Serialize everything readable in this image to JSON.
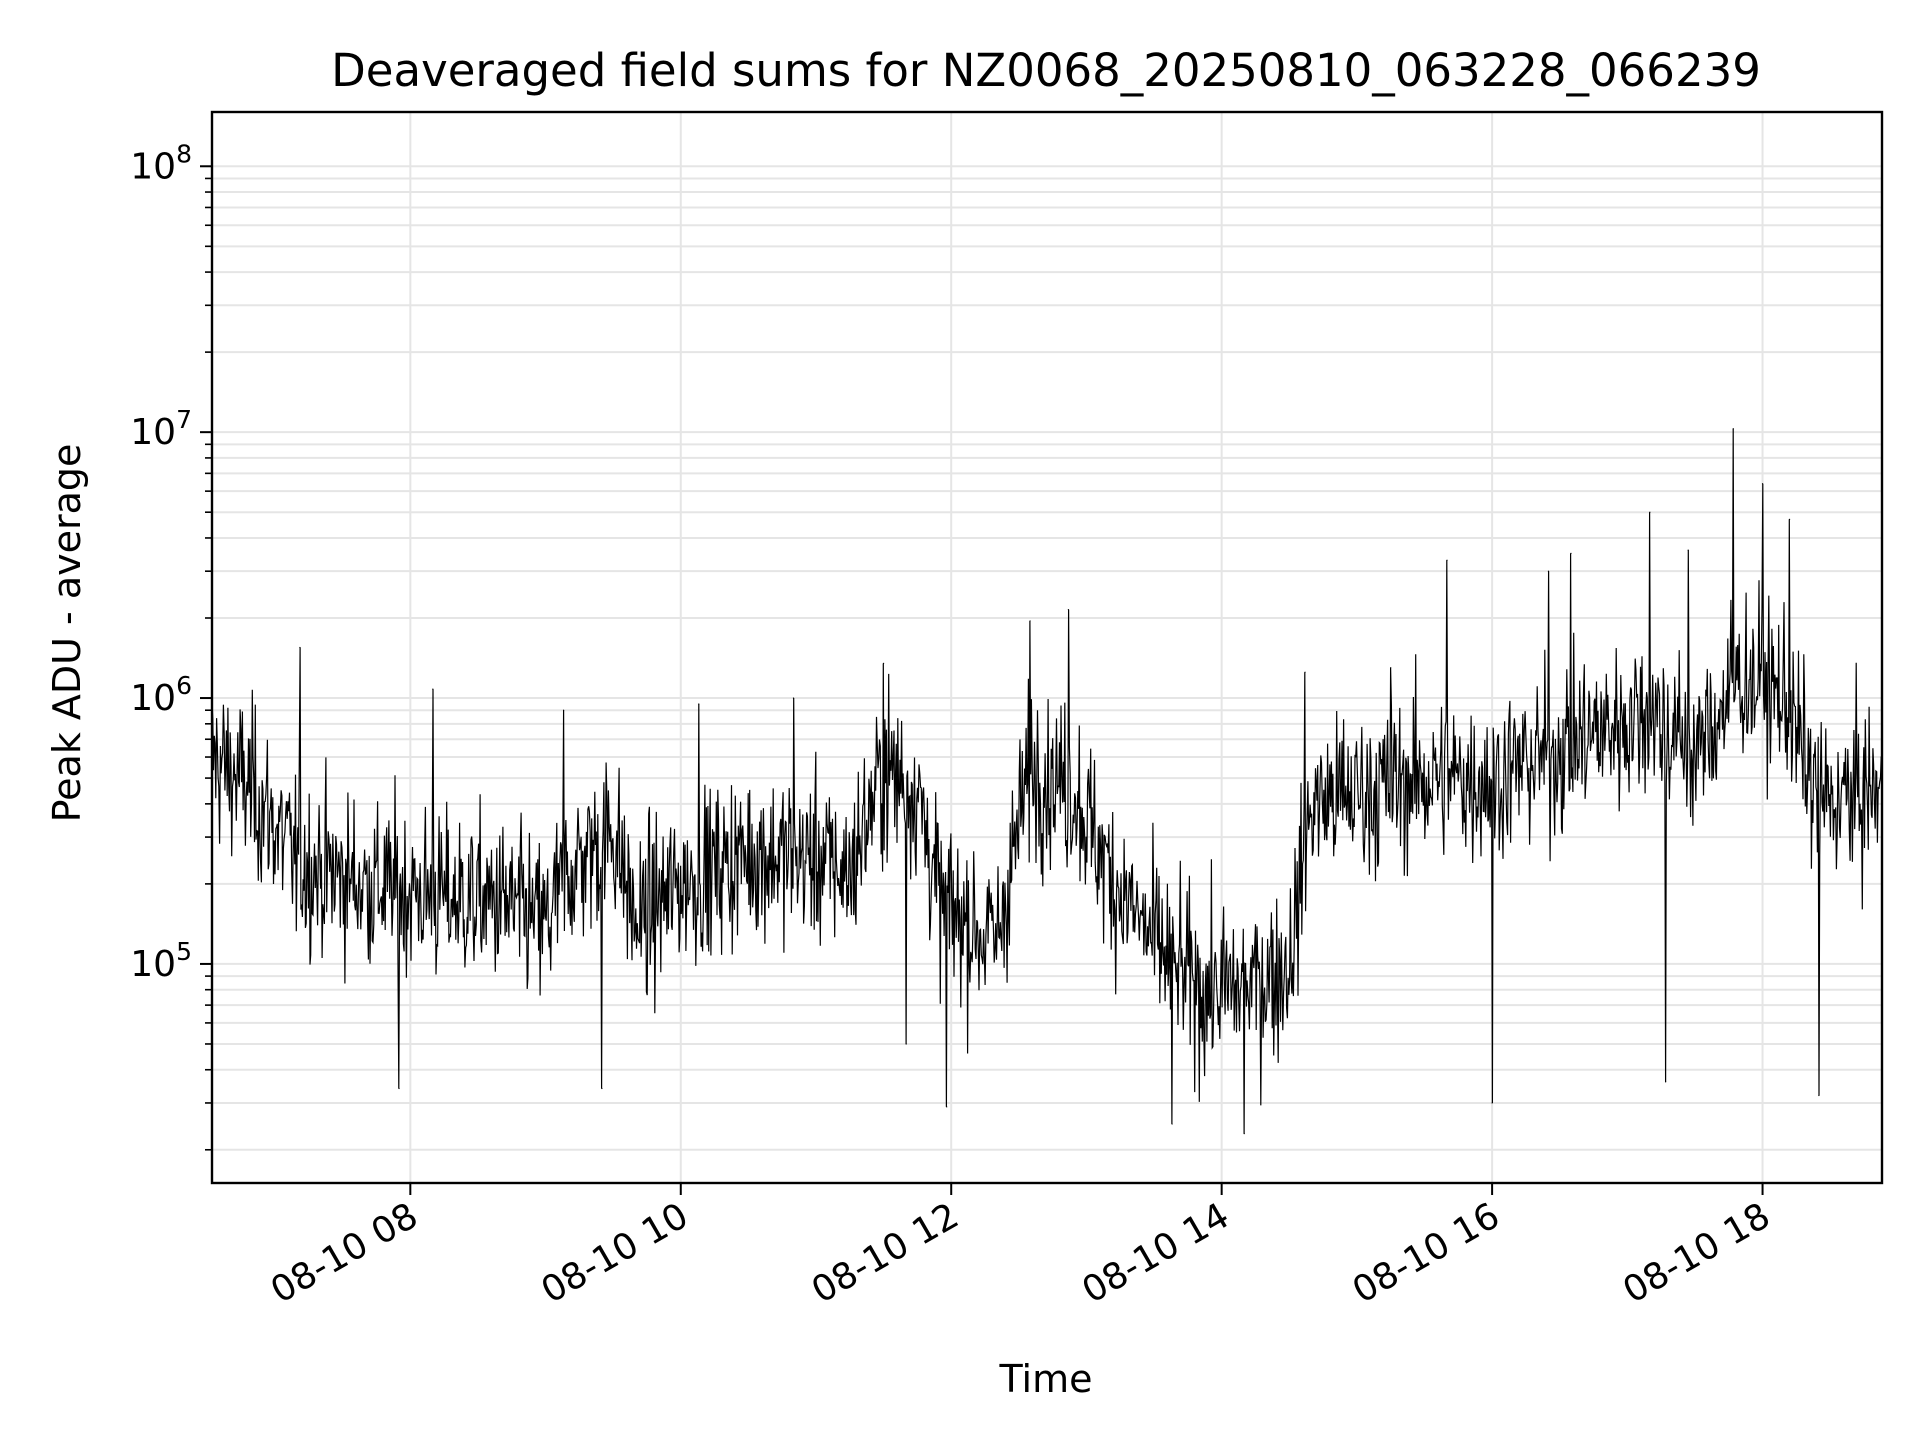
{
  "chart_data": {
    "type": "line",
    "title": "Deaveraged field sums for NZ0068_20250810_063228_066239",
    "xlabel": "Time",
    "ylabel": "Peak ADU - average",
    "yscale": "log",
    "grid": true,
    "line_color": "#000000",
    "grid_color": "#e5e5e5",
    "xlim": [
      "2025-08-10T06:32",
      "2025-08-10T18:53"
    ],
    "ylim": [
      15000,
      160000000
    ],
    "x_ticks": [
      {
        "t": "2025-08-10T08:00",
        "label": "08-10 08"
      },
      {
        "t": "2025-08-10T10:00",
        "label": "08-10 10"
      },
      {
        "t": "2025-08-10T12:00",
        "label": "08-10 12"
      },
      {
        "t": "2025-08-10T14:00",
        "label": "08-10 14"
      },
      {
        "t": "2025-08-10T16:00",
        "label": "08-10 16"
      },
      {
        "t": "2025-08-10T18:00",
        "label": "08-10 18"
      }
    ],
    "y_ticks": [
      {
        "v": 100000,
        "base": "10",
        "exp": "5"
      },
      {
        "v": 1000000,
        "base": "10",
        "exp": "6"
      },
      {
        "v": 10000000,
        "base": "10",
        "exp": "7"
      },
      {
        "v": 100000000,
        "base": "10",
        "exp": "8"
      }
    ],
    "series": [
      {
        "baseline": [
          [
            "2025-08-10T06:32",
            600000
          ],
          [
            "2025-08-10T06:50",
            450000
          ],
          [
            "2025-08-10T07:10",
            240000
          ],
          [
            "2025-08-10T07:40",
            200000
          ],
          [
            "2025-08-10T08:10",
            180000
          ],
          [
            "2025-08-10T08:40",
            170000
          ],
          [
            "2025-08-10T09:00",
            140000
          ],
          [
            "2025-08-10T09:10",
            220000
          ],
          [
            "2025-08-10T09:30",
            320000
          ],
          [
            "2025-08-10T09:40",
            140000
          ],
          [
            "2025-08-10T10:00",
            200000
          ],
          [
            "2025-08-10T10:30",
            260000
          ],
          [
            "2025-08-10T11:00",
            250000
          ],
          [
            "2025-08-10T11:15",
            220000
          ],
          [
            "2025-08-10T11:30",
            550000
          ],
          [
            "2025-08-10T11:45",
            450000
          ],
          [
            "2025-08-10T11:55",
            170000
          ],
          [
            "2025-08-10T12:20",
            120000
          ],
          [
            "2025-08-10T12:35",
            550000
          ],
          [
            "2025-08-10T12:55",
            450000
          ],
          [
            "2025-08-10T13:10",
            220000
          ],
          [
            "2025-08-10T13:30",
            120000
          ],
          [
            "2025-08-10T13:50",
            80000
          ],
          [
            "2025-08-10T14:10",
            80000
          ],
          [
            "2025-08-10T14:30",
            100000
          ],
          [
            "2025-08-10T14:40",
            400000
          ],
          [
            "2025-08-10T15:30",
            500000
          ],
          [
            "2025-08-10T16:00",
            500000
          ],
          [
            "2025-08-10T16:40",
            700000
          ],
          [
            "2025-08-10T17:10",
            900000
          ],
          [
            "2025-08-10T17:30",
            600000
          ],
          [
            "2025-08-10T17:50",
            1200000
          ],
          [
            "2025-08-10T18:10",
            1000000
          ],
          [
            "2025-08-10T18:25",
            400000
          ],
          [
            "2025-08-10T18:53",
            450000
          ]
        ],
        "spikes": [
          [
            "2025-08-10T07:11",
            1550000
          ],
          [
            "2025-08-10T08:10",
            1080000
          ],
          [
            "2025-08-10T09:08",
            900000
          ],
          [
            "2025-08-10T10:08",
            950000
          ],
          [
            "2025-08-10T10:50",
            1000000
          ],
          [
            "2025-08-10T11:30",
            1350000
          ],
          [
            "2025-08-10T12:35",
            1950000
          ],
          [
            "2025-08-10T12:52",
            2150000
          ],
          [
            "2025-08-10T14:37",
            1250000
          ],
          [
            "2025-08-10T15:15",
            1300000
          ],
          [
            "2025-08-10T15:40",
            3300000
          ],
          [
            "2025-08-10T16:25",
            3000000
          ],
          [
            "2025-08-10T16:35",
            3500000
          ],
          [
            "2025-08-10T17:10",
            5000000
          ],
          [
            "2025-08-10T17:27",
            3600000
          ],
          [
            "2025-08-10T17:47",
            10300000
          ],
          [
            "2025-08-10T18:00",
            6400000
          ],
          [
            "2025-08-10T18:12",
            4700000
          ]
        ],
        "dips": [
          [
            "2025-08-10T07:55",
            34000
          ],
          [
            "2025-08-10T09:25",
            34000
          ],
          [
            "2025-08-10T11:40",
            50000
          ],
          [
            "2025-08-10T11:58",
            29000
          ],
          [
            "2025-08-10T13:38",
            25000
          ],
          [
            "2025-08-10T14:10",
            23000
          ],
          [
            "2025-08-10T16:00",
            30000
          ],
          [
            "2025-08-10T17:17",
            36000
          ],
          [
            "2025-08-10T18:25",
            32000
          ]
        ]
      }
    ]
  }
}
